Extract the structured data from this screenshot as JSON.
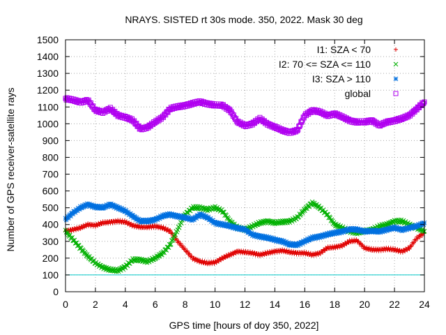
{
  "chart_data": {
    "type": "scatter",
    "title": "NRAYS. SISTED rt 30s mode. 350, 2022. Mask 30 deg",
    "xlabel": "GPS time [hours of doy 350, 2022]",
    "ylabel": "Number of GPS receiver-satellite rays",
    "xlim": [
      0,
      24
    ],
    "ylim": [
      0,
      1500
    ],
    "x_ticks": [
      0,
      2,
      4,
      6,
      8,
      10,
      12,
      14,
      16,
      18,
      20,
      22,
      24
    ],
    "y_ticks": [
      0,
      100,
      200,
      300,
      400,
      500,
      600,
      700,
      800,
      900,
      1000,
      1100,
      1200,
      1300,
      1400,
      1500
    ],
    "grid": true,
    "legend_position": "top-right",
    "reference_line": {
      "y": 100,
      "color": "#00c8c8"
    },
    "series": [
      {
        "name": "I1: SZA < 70",
        "marker": "+",
        "color": "#e00000",
        "x": [
          0,
          0.5,
          1,
          1.5,
          2,
          2.5,
          3,
          3.5,
          4,
          4.5,
          5,
          5.5,
          6,
          6.5,
          7,
          7.5,
          8,
          8.5,
          9,
          9.5,
          10,
          10.5,
          11,
          11.5,
          12,
          12.5,
          13,
          13.5,
          14,
          14.5,
          15,
          15.5,
          16,
          16.5,
          17,
          17.5,
          18,
          18.5,
          19,
          19.5,
          20,
          20.5,
          21,
          21.5,
          22,
          22.5,
          23,
          23.5,
          24
        ],
        "y": [
          360,
          370,
          380,
          400,
          395,
          410,
          415,
          420,
          415,
          395,
          385,
          385,
          390,
          380,
          360,
          300,
          250,
          200,
          180,
          170,
          175,
          200,
          220,
          240,
          235,
          230,
          220,
          230,
          240,
          245,
          235,
          230,
          230,
          220,
          230,
          260,
          265,
          275,
          300,
          305,
          260,
          250,
          250,
          255,
          250,
          240,
          260,
          320,
          350
        ]
      },
      {
        "name": "I2: 70 <= SZA <= 110",
        "marker": "x",
        "color": "#00b000",
        "x": [
          0,
          0.5,
          1,
          1.5,
          2,
          2.5,
          3,
          3.5,
          4,
          4.5,
          5,
          5.5,
          6,
          6.5,
          7,
          7.5,
          8,
          8.5,
          9,
          9.5,
          10,
          10.5,
          11,
          11.5,
          12,
          12.5,
          13,
          13.5,
          14,
          14.5,
          15,
          15.5,
          16,
          16.5,
          17,
          17.5,
          18,
          18.5,
          19,
          19.5,
          20,
          20.5,
          21,
          21.5,
          22,
          22.5,
          23,
          23.5,
          24
        ],
        "y": [
          360,
          310,
          260,
          210,
          170,
          145,
          130,
          125,
          150,
          190,
          190,
          180,
          200,
          230,
          280,
          370,
          460,
          500,
          500,
          490,
          500,
          480,
          420,
          380,
          370,
          390,
          410,
          420,
          410,
          415,
          420,
          440,
          490,
          530,
          500,
          460,
          400,
          380,
          360,
          350,
          360,
          370,
          390,
          400,
          420,
          420,
          400,
          380,
          360
        ]
      },
      {
        "name": "I3: SZA > 110",
        "marker": "*",
        "color": "#0070e0",
        "x": [
          0,
          0.5,
          1,
          1.5,
          2,
          2.5,
          3,
          3.5,
          4,
          4.5,
          5,
          5.5,
          6,
          6.5,
          7,
          7.5,
          8,
          8.5,
          9,
          9.5,
          10,
          10.5,
          11,
          11.5,
          12,
          12.5,
          13,
          13.5,
          14,
          14.5,
          15,
          15.5,
          16,
          16.5,
          17,
          17.5,
          18,
          18.5,
          19,
          19.5,
          20,
          20.5,
          21,
          21.5,
          22,
          22.5,
          23,
          23.5,
          24
        ],
        "y": [
          430,
          470,
          500,
          520,
          505,
          500,
          520,
          500,
          480,
          450,
          420,
          420,
          430,
          450,
          460,
          450,
          440,
          430,
          460,
          440,
          410,
          400,
          390,
          380,
          370,
          340,
          330,
          320,
          310,
          300,
          280,
          280,
          300,
          320,
          330,
          340,
          350,
          360,
          370,
          370,
          360,
          360,
          360,
          370,
          380,
          370,
          380,
          390,
          410
        ]
      },
      {
        "name": "global",
        "marker": "square",
        "color": "#b000f0",
        "x": [
          0,
          0.5,
          1,
          1.5,
          2,
          2.5,
          3,
          3.5,
          4,
          4.5,
          5,
          5.5,
          6,
          6.5,
          7,
          7.5,
          8,
          8.5,
          9,
          9.5,
          10,
          10.5,
          11,
          11.5,
          12,
          12.5,
          13,
          13.5,
          14,
          14.5,
          15,
          15.5,
          16,
          16.5,
          17,
          17.5,
          18,
          18.5,
          19,
          19.5,
          20,
          20.5,
          21,
          21.5,
          22,
          22.5,
          23,
          23.5,
          24
        ],
        "y": [
          1150,
          1140,
          1130,
          1140,
          1080,
          1070,
          1090,
          1050,
          1040,
          1020,
          970,
          980,
          1010,
          1040,
          1090,
          1100,
          1110,
          1120,
          1130,
          1120,
          1110,
          1110,
          1080,
          1010,
          990,
          1000,
          1030,
          1000,
          980,
          960,
          950,
          960,
          1050,
          1080,
          1070,
          1050,
          1060,
          1040,
          1020,
          1010,
          1010,
          1020,
          990,
          1010,
          1020,
          1030,
          1050,
          1090,
          1130
        ]
      }
    ]
  }
}
